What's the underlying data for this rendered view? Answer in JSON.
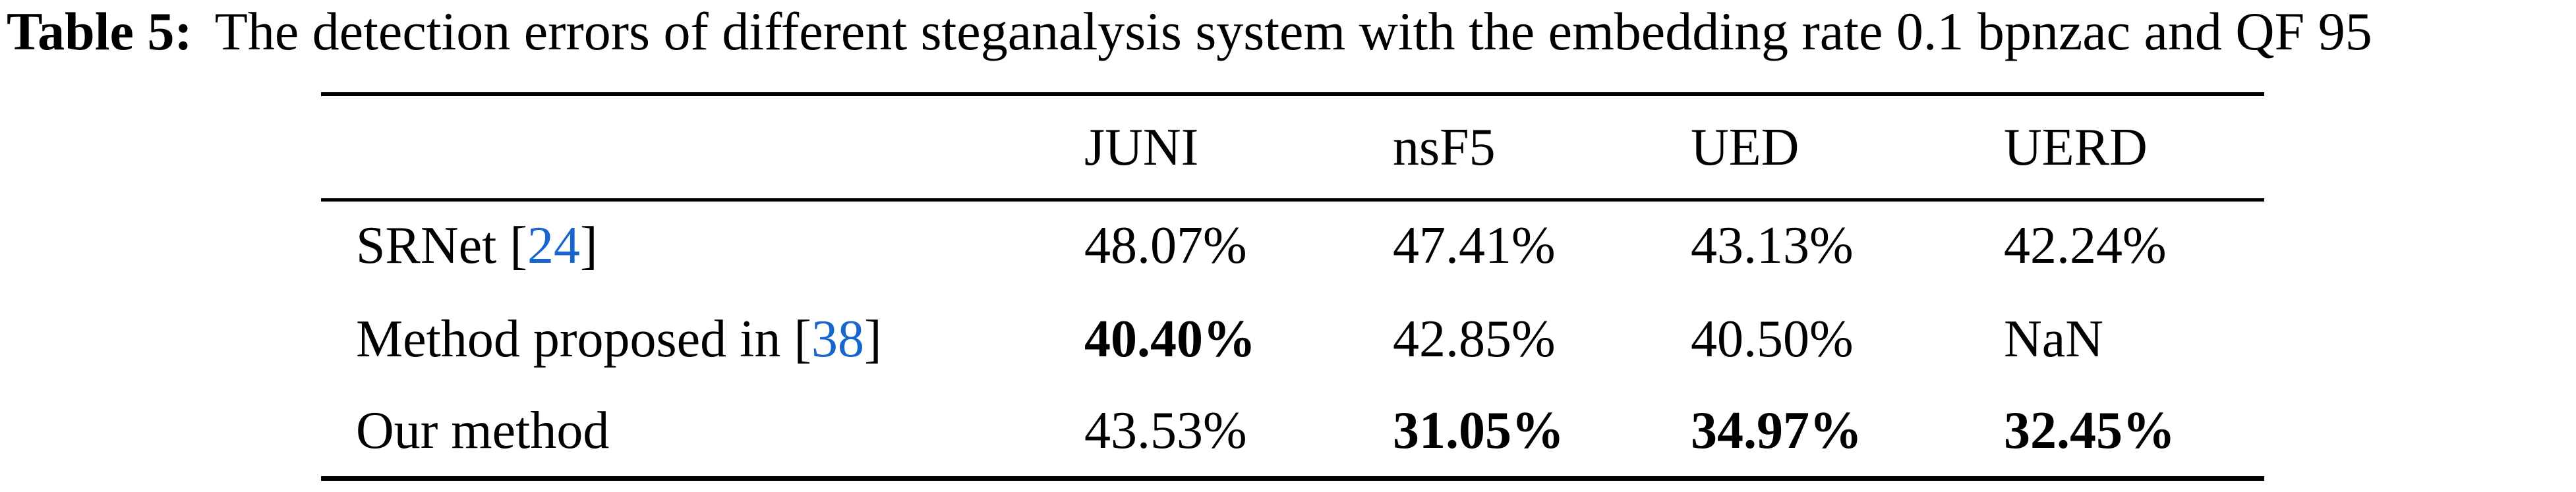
{
  "caption": {
    "label": "Table 5:",
    "text": "The detection errors of different steganalysis system with the embedding rate 0.1 bpnzac and QF 95"
  },
  "ui": {
    "bracket_open": "[",
    "bracket_close": "]"
  },
  "colors": {
    "citation_link": "#1766CE",
    "text": "#000000",
    "background": "#FFFFFF",
    "rule": "#000000"
  },
  "table": {
    "columns": [
      "JUNI",
      "nsF5",
      "UED",
      "UERD"
    ],
    "rows": [
      {
        "method": "SRNet",
        "citation": "24",
        "cells": [
          {
            "text": "48.07%",
            "bold": false
          },
          {
            "text": "47.41%",
            "bold": false
          },
          {
            "text": "43.13%",
            "bold": false
          },
          {
            "text": "42.24%",
            "bold": false
          }
        ]
      },
      {
        "method": "Method proposed in",
        "citation": "38",
        "cells": [
          {
            "text": "40.40%",
            "bold": true
          },
          {
            "text": "42.85%",
            "bold": false
          },
          {
            "text": "40.50%",
            "bold": false
          },
          {
            "text": "NaN",
            "bold": false
          }
        ]
      },
      {
        "method": "Our method",
        "citation": null,
        "cells": [
          {
            "text": "43.53%",
            "bold": false
          },
          {
            "text": "31.05%",
            "bold": true
          },
          {
            "text": "34.97%",
            "bold": true
          },
          {
            "text": "32.45%",
            "bold": true
          }
        ]
      }
    ]
  }
}
